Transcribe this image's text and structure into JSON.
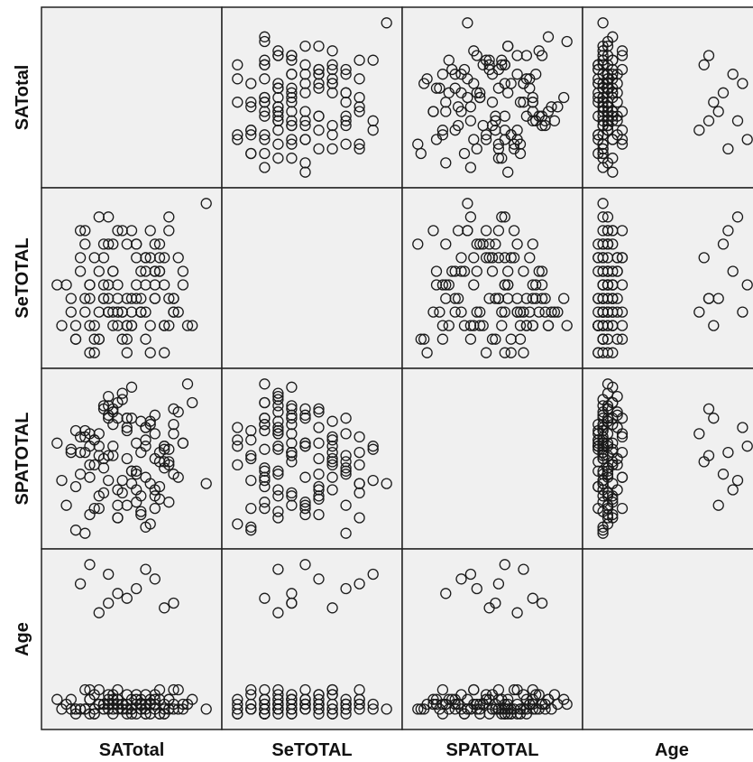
{
  "chart_data": {
    "type": "scatter",
    "subtype": "scatterplot-matrix",
    "variables": [
      "SATotal",
      "SeTOTAL",
      "SPATOTAL",
      "Age"
    ],
    "diagonal": "empty",
    "marker": "open-circle",
    "background_color": "#f0f0f0",
    "marker_color": "#1a1a1a",
    "observations": [
      [
        105,
        3.1,
        80,
        20
      ],
      [
        98,
        3.4,
        72,
        21
      ],
      [
        112,
        2.8,
        88,
        19
      ],
      [
        101,
        3.0,
        95,
        22
      ],
      [
        95,
        3.6,
        60,
        20
      ],
      [
        110,
        3.3,
        68,
        21
      ],
      [
        104,
        2.9,
        84,
        23
      ],
      [
        99,
        3.2,
        101,
        20
      ],
      [
        108,
        3.5,
        90,
        19
      ],
      [
        96,
        3.0,
        78,
        24
      ],
      [
        115,
        3.1,
        99,
        20
      ],
      [
        102,
        3.7,
        65,
        21
      ],
      [
        107,
        3.2,
        86,
        22
      ],
      [
        93,
        2.9,
        93,
        20
      ],
      [
        111,
        3.4,
        75,
        19
      ],
      [
        103,
        3.1,
        105,
        21
      ],
      [
        97,
        3.5,
        82,
        23
      ],
      [
        113,
        3.0,
        70,
        20
      ],
      [
        100,
        3.6,
        97,
        22
      ],
      [
        109,
        2.8,
        63,
        21
      ],
      [
        106,
        3.2,
        89,
        19
      ],
      [
        94,
        3.4,
        79,
        20
      ],
      [
        114,
        3.1,
        92,
        24
      ],
      [
        98,
        2.9,
        85,
        21
      ],
      [
        105,
        3.7,
        76,
        20
      ],
      [
        118,
        3.0,
        102,
        22
      ],
      [
        91,
        3.3,
        69,
        21
      ],
      [
        108,
        3.5,
        88,
        19
      ],
      [
        102,
        3.1,
        74,
        20
      ],
      [
        110,
        3.2,
        98,
        23
      ],
      [
        99,
        3.6,
        81,
        21
      ],
      [
        104,
        2.8,
        94,
        20
      ],
      [
        96,
        3.3,
        66,
        22
      ],
      [
        112,
        3.0,
        87,
        19
      ],
      [
        101,
        3.4,
        100,
        21
      ],
      [
        107,
        3.1,
        72,
        20
      ],
      [
        95,
        3.7,
        91,
        24
      ],
      [
        113,
        3.2,
        83,
        22
      ],
      [
        103,
        2.9,
        77,
        20
      ],
      [
        109,
        3.5,
        96,
        21
      ],
      [
        97,
        3.0,
        68,
        19
      ],
      [
        116,
        3.3,
        89,
        20
      ],
      [
        100,
        3.1,
        104,
        23
      ],
      [
        106,
        3.6,
        80,
        21
      ],
      [
        92,
        3.2,
        86,
        20
      ],
      [
        111,
        3.4,
        71,
        22
      ],
      [
        104,
        3.0,
        93,
        19
      ],
      [
        98,
        3.8,
        88,
        21
      ],
      [
        108,
        2.9,
        62,
        20
      ],
      [
        102,
        3.3,
        97,
        24
      ],
      [
        114,
        3.1,
        79,
        21
      ],
      [
        99,
        3.5,
        84,
        20
      ],
      [
        105,
        3.2,
        107,
        22
      ],
      [
        93,
        3.0,
        75,
        19
      ],
      [
        110,
        3.6,
        92,
        21
      ],
      [
        107,
        3.1,
        67,
        20
      ],
      [
        101,
        3.4,
        99,
        23
      ],
      [
        96,
        2.8,
        82,
        22
      ],
      [
        112,
        3.3,
        88,
        20
      ],
      [
        103,
        3.7,
        73,
        21
      ],
      [
        109,
        3.0,
        95,
        19
      ],
      [
        95,
        3.2,
        86,
        20
      ],
      [
        115,
        3.5,
        78,
        24
      ],
      [
        100,
        3.1,
        101,
        21
      ],
      [
        106,
        3.3,
        70,
        22
      ],
      [
        97,
        2.9,
        90,
        20
      ],
      [
        111,
        3.6,
        83,
        19
      ],
      [
        104,
        3.2,
        97,
        21
      ],
      [
        90,
        3.0,
        77,
        20
      ],
      [
        108,
        3.4,
        94,
        23
      ],
      [
        102,
        3.1,
        65,
        22
      ],
      [
        113,
        3.8,
        87,
        20
      ],
      [
        99,
        3.3,
        100,
        21
      ],
      [
        105,
        3.0,
        80,
        19
      ],
      [
        94,
        3.5,
        91,
        20
      ],
      [
        110,
        3.2,
        72,
        22
      ],
      [
        107,
        3.1,
        96,
        21
      ],
      [
        101,
        3.6,
        85,
        20
      ],
      [
        98,
        2.9,
        68,
        24
      ],
      [
        116,
        3.4,
        89,
        21
      ],
      [
        103,
        3.1,
        103,
        20
      ],
      [
        109,
        3.7,
        76,
        22
      ],
      [
        96,
        3.2,
        92,
        19
      ],
      [
        112,
        3.0,
        81,
        21
      ],
      [
        100,
        3.3,
        98,
        20
      ],
      [
        106,
        3.5,
        74,
        23
      ],
      [
        92,
        3.1,
        87,
        22
      ],
      [
        114,
        3.2,
        95,
        20
      ],
      [
        104,
        3.6,
        69,
        21
      ],
      [
        97,
        2.8,
        90,
        19
      ],
      [
        110,
        3.4,
        84,
        20
      ],
      [
        102,
        3.0,
        102,
        22
      ],
      [
        108,
        3.3,
        78,
        21
      ],
      [
        95,
        3.1,
        93,
        20
      ],
      [
        111,
        3.5,
        86,
        24
      ],
      [
        99,
        3.2,
        73,
        21
      ],
      [
        105,
        3.0,
        97,
        20
      ],
      [
        113,
        3.7,
        82,
        22
      ],
      [
        101,
        3.1,
        88,
        19
      ],
      [
        107,
        3.4,
        66,
        21
      ],
      [
        121,
        3.9,
        76,
        20
      ],
      [
        89,
        3.3,
        89,
        22
      ],
      [
        117,
        3.0,
        108,
        21
      ],
      [
        93,
        2.9,
        61,
        20
      ],
      [
        100,
        3.2,
        85,
        42
      ],
      [
        106,
        3.6,
        79,
        45
      ],
      [
        98,
        3.1,
        92,
        40
      ],
      [
        110,
        3.4,
        74,
        47
      ],
      [
        104,
        3.0,
        97,
        43
      ],
      [
        96,
        3.3,
        88,
        50
      ],
      [
        112,
        3.5,
        83,
        41
      ],
      [
        102,
        3.2,
        69,
        44
      ],
      [
        108,
        3.1,
        94,
        49
      ],
      [
        94,
        3.7,
        86,
        46
      ],
      [
        114,
        3.2,
        100,
        42
      ],
      [
        100,
        3.8,
        77,
        48
      ]
    ],
    "axis_labels_x": [
      "SATotal",
      "SeTOTAL",
      "SPATOTAL",
      "Age"
    ],
    "axis_labels_y": [
      "SATotal",
      "SeTOTAL",
      "SPATOTAL",
      "Age"
    ],
    "grid": false,
    "legend": "none"
  }
}
